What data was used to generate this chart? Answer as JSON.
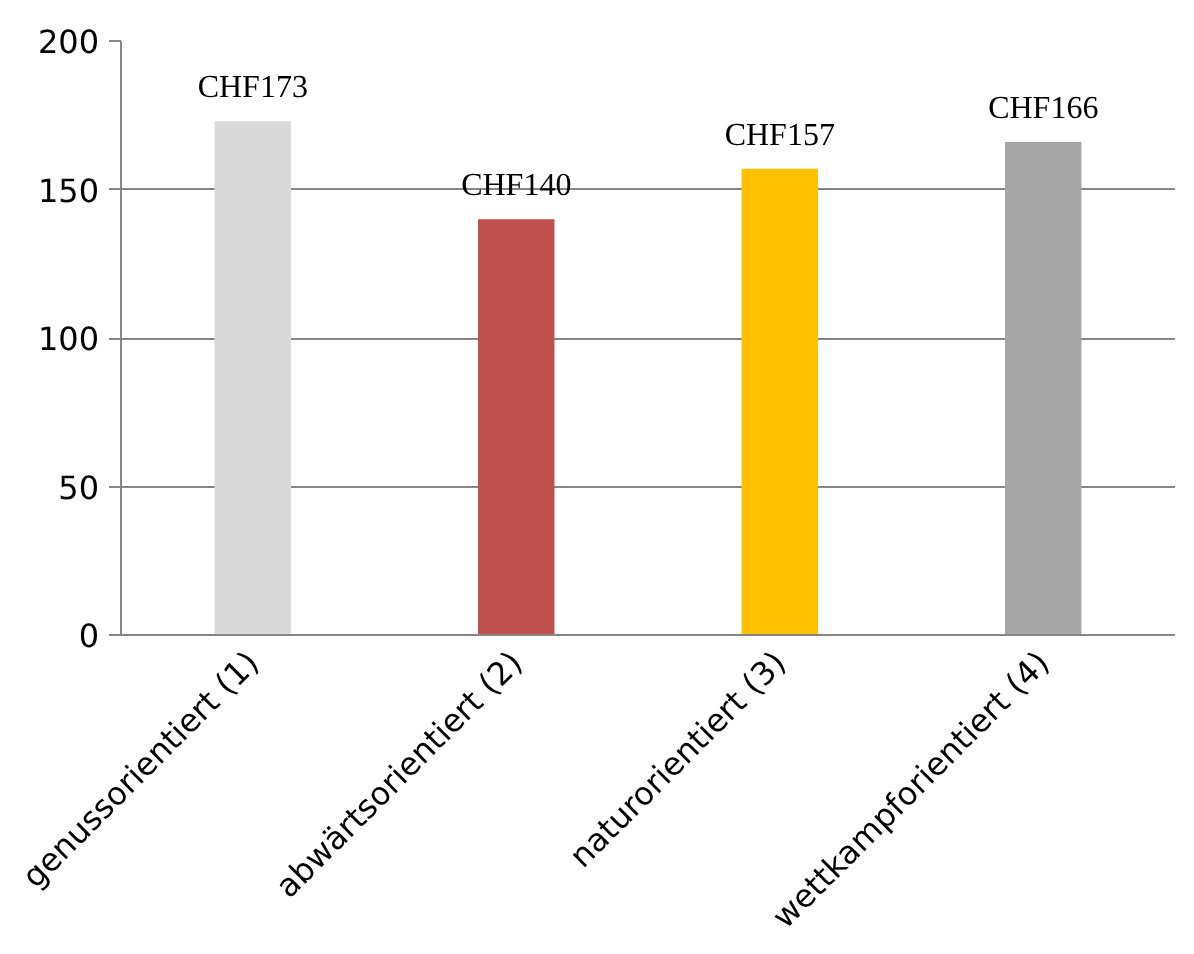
{
  "chart_data": {
    "type": "bar",
    "categories": [
      "genussorientiert (1)",
      "abwärtsorientiert (2)",
      "naturorientiert (3)",
      "wettkampforientiert (4)"
    ],
    "values": [
      173,
      140,
      157,
      166
    ],
    "colors": [
      "#d9d9d9",
      "#c0504d",
      "#ffc000",
      "#a6a6a6"
    ],
    "value_labels": [
      "CHF173",
      "CHF140",
      "CHF157",
      "CHF166"
    ],
    "ylim": [
      0,
      200
    ],
    "yticks": [
      0,
      50,
      100,
      150,
      200
    ],
    "grid": "y"
  }
}
